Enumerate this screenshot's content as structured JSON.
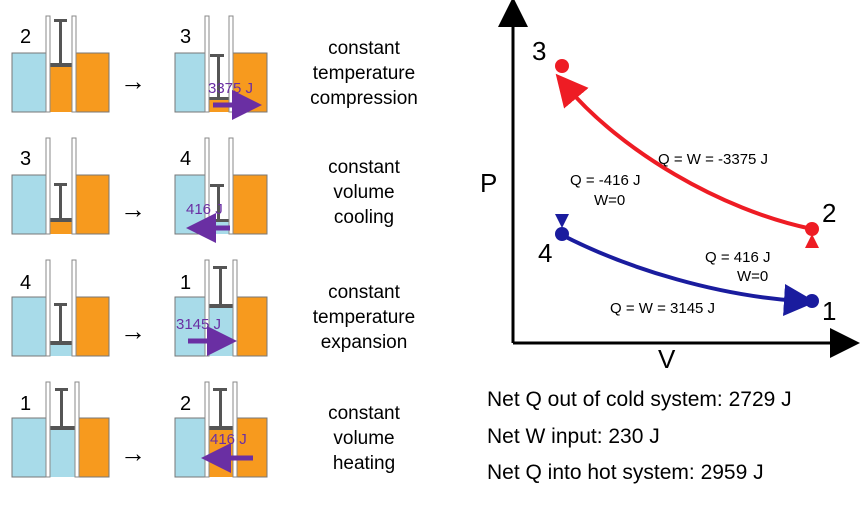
{
  "rows": [
    {
      "from_state": "2",
      "to_state": "3",
      "process_lines": [
        "constant",
        "temperature",
        "compression"
      ],
      "heat_label": "3375 J",
      "heat_direction": "right"
    },
    {
      "from_state": "3",
      "to_state": "4",
      "process_lines": [
        "constant",
        "volume",
        "cooling"
      ],
      "heat_label": "416 J",
      "heat_direction": "left"
    },
    {
      "from_state": "4",
      "to_state": "1",
      "process_lines": [
        "constant",
        "temperature",
        "expansion"
      ],
      "heat_label": "3145 J",
      "heat_direction": "right"
    },
    {
      "from_state": "1",
      "to_state": "2",
      "process_lines": [
        "constant",
        "volume",
        "heating"
      ],
      "heat_label": "416 J",
      "heat_direction": "left"
    }
  ],
  "pv_diagram": {
    "y_axis_label": "P",
    "x_axis_label": "V",
    "states": [
      "1",
      "2",
      "3",
      "4"
    ],
    "edge_labels": {
      "curve_2_to_3": "Q = W = -3375 J",
      "line_3_to_4_q": "Q = -416 J",
      "line_3_to_4_w": "W=0",
      "line_1_to_2_q": "Q = 416 J",
      "line_1_to_2_w": "W=0",
      "curve_4_to_1": "Q = W = 3145 J"
    }
  },
  "summary": [
    "Net Q out of cold system: 2729 J",
    "Net W input: 230 J",
    "Net Q into hot system: 2959 J"
  ],
  "colors": {
    "cold_reservoir": "#a8dbe9",
    "hot_reservoir": "#f79a1e",
    "heat_arrow": "#6a2fa3",
    "hot_process": "#ee1c24",
    "cold_process": "#1a1c9e"
  }
}
